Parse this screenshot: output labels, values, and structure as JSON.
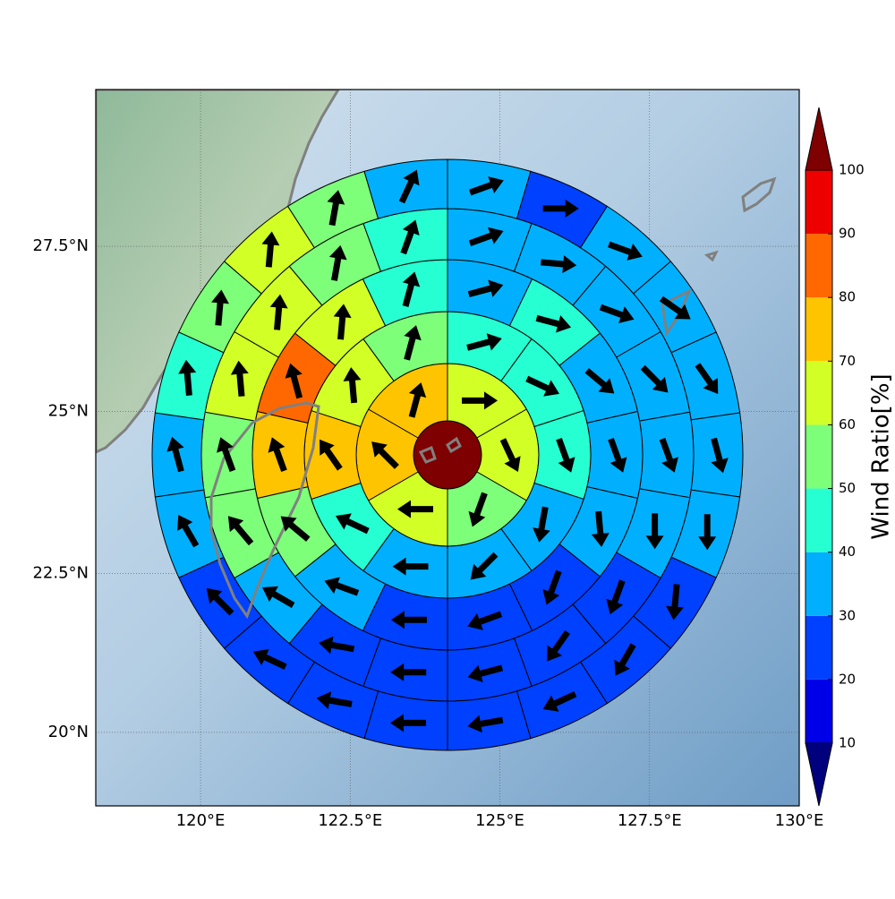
{
  "chart_data": {
    "type": "polar_grid_map",
    "xlim": [
      118.25,
      130
    ],
    "ylim": [
      18.83,
      29.82
    ],
    "xticks": [
      {
        "value": 120,
        "label": "120°E"
      },
      {
        "value": 122.5,
        "label": "122.5°E"
      },
      {
        "value": 125,
        "label": "125°E"
      },
      {
        "value": 127.5,
        "label": "127.5°E"
      },
      {
        "value": 130,
        "label": "130°E"
      }
    ],
    "yticks": [
      {
        "value": 20,
        "label": "20°N"
      },
      {
        "value": 22.5,
        "label": "22.5°N"
      },
      {
        "value": 25,
        "label": "25°N"
      },
      {
        "value": 27.5,
        "label": "27.5°N"
      }
    ],
    "grid": true,
    "center": {
      "value": 105
    },
    "rings": [
      {
        "values": [
          65,
          63,
          55,
          63,
          75,
          75
        ],
        "directions": [
          90,
          155,
          200,
          270,
          315,
          15
        ]
      },
      {
        "values": [
          45,
          45,
          45,
          35,
          35,
          35,
          45,
          75,
          65,
          55
        ],
        "directions": [
          75,
          115,
          160,
          190,
          225,
          270,
          295,
          325,
          355,
          15
        ]
      },
      {
        "values": [
          35,
          45,
          35,
          35,
          35,
          25,
          25,
          25,
          35,
          55,
          75,
          85,
          65,
          45
        ],
        "directions": [
          75,
          105,
          130,
          160,
          175,
          200,
          250,
          270,
          290,
          310,
          340,
          345,
          5,
          15
        ]
      },
      {
        "values": [
          35,
          35,
          35,
          35,
          35,
          35,
          25,
          25,
          25,
          25,
          25,
          35,
          55,
          55,
          65,
          65,
          55,
          45
        ],
        "directions": [
          70,
          95,
          110,
          135,
          160,
          180,
          200,
          215,
          255,
          270,
          280,
          300,
          320,
          340,
          355,
          5,
          10,
          20
        ]
      },
      {
        "values": [
          35,
          25,
          35,
          35,
          35,
          35,
          35,
          25,
          25,
          25,
          25,
          25,
          25,
          25,
          25,
          35,
          35,
          45,
          55,
          65,
          55,
          35
        ],
        "directions": [
          70,
          90,
          110,
          125,
          145,
          165,
          180,
          185,
          210,
          245,
          260,
          270,
          280,
          295,
          315,
          330,
          345,
          355,
          5,
          5,
          10,
          25
        ]
      }
    ],
    "colorbar": {
      "label": "Wind Ratio[%]",
      "levels": [
        10,
        20,
        30,
        40,
        50,
        60,
        70,
        80,
        90,
        100
      ],
      "colors": [
        "#00007f",
        "#0000e8",
        "#0040ff",
        "#00b0ff",
        "#26ffd1",
        "#7dff7a",
        "#d1ff26",
        "#ffc400",
        "#ff6800",
        "#ee0000",
        "#7f0000"
      ],
      "extend": "both"
    }
  }
}
